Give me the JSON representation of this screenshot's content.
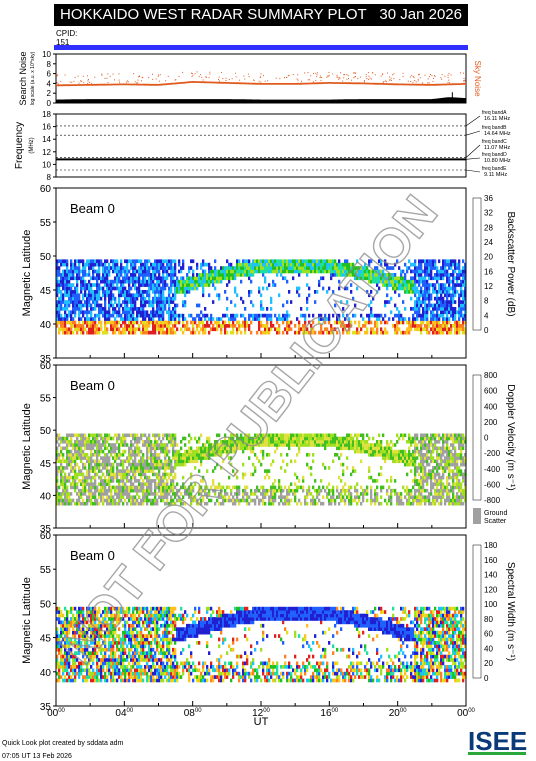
{
  "header": {
    "title": "HOKKAIDO WEST RADAR SUMMARY PLOT",
    "date": "30 Jan 2026",
    "cpid_label": "CPID:",
    "cpid_value": "151"
  },
  "watermark": "NOT FOR PUBLICATION",
  "footer": {
    "credit": "Quick Look plot created by sddata adm",
    "timestamp": "07:05 UT 13 Feb 2026",
    "logo": "ISEE"
  },
  "colors": {
    "cpid_bar": "#2f2fff",
    "sky_noise": "#e05a1e",
    "search_noise": "#000000",
    "ground_scatter": "#a0a0a0"
  },
  "chart_data": [
    {
      "type": "line",
      "panel": "noise",
      "ylabel_main": "Search Noise",
      "ylabel_sub": "log scale (a.u. x 10^sky)",
      "side_label": "Sky Noise",
      "ylim": [
        0,
        10
      ],
      "yticks": [
        "0",
        "2",
        "4",
        "6",
        "8",
        "10"
      ],
      "series": [
        {
          "name": "Sky Noise",
          "x": [
            0,
            2,
            4,
            6,
            8,
            10,
            12,
            14,
            16,
            18,
            20,
            22,
            23,
            24
          ],
          "values": [
            3.6,
            3.7,
            3.8,
            3.7,
            4.3,
            4.1,
            3.9,
            3.9,
            4.1,
            4.0,
            3.8,
            3.7,
            3.8,
            3.9
          ]
        },
        {
          "name": "Search Noise",
          "x": [
            0,
            2,
            4,
            6,
            8,
            10,
            12,
            14,
            16,
            18,
            20,
            22,
            23,
            24
          ],
          "values": [
            0.7,
            0.8,
            0.8,
            0.8,
            0.8,
            0.8,
            0.7,
            0.7,
            0.7,
            0.8,
            0.8,
            0.8,
            1.2,
            1.0
          ]
        }
      ]
    },
    {
      "type": "line",
      "panel": "frequency",
      "ylabel": "Frequency",
      "yunit": "(MHz)",
      "ylim": [
        8,
        18
      ],
      "yticks": [
        "8",
        "10",
        "12",
        "14",
        "16",
        "18"
      ],
      "bands": [
        {
          "label": "freq bandA",
          "value": "16.11 MHz",
          "freq": 16.11
        },
        {
          "label": "freq bandB",
          "value": "14.64 MHz",
          "freq": 14.64
        },
        {
          "label": "freq bandC",
          "value": "11.07 MHz",
          "freq": 11.07
        },
        {
          "label": "freq bandD",
          "value": "10.80 MHz",
          "freq": 10.8
        },
        {
          "label": "freq bandE",
          "value": "9.11 MHz",
          "freq": 9.11
        }
      ],
      "operating_freq": 10.8
    },
    {
      "type": "heatmap",
      "panel": "power",
      "beam": "Beam  0",
      "ylabel": "Magnetic Latitude",
      "colorbar_label": "Backscatter Power (dB)",
      "ylim": [
        35,
        60
      ],
      "yticks": [
        "35",
        "40",
        "45",
        "50",
        "55",
        "60"
      ],
      "colorbar_ticks": [
        "0",
        "4",
        "8",
        "12",
        "16",
        "20",
        "24",
        "28",
        "32",
        "36"
      ],
      "colors": [
        "#2020d0",
        "#2060ff",
        "#20c0ff",
        "#20e0a0",
        "#20c020",
        "#a0e020",
        "#e0e020",
        "#ffc020",
        "#ff8020",
        "#e02020"
      ]
    },
    {
      "type": "heatmap",
      "panel": "velocity",
      "beam": "Beam  0",
      "ylabel": "Magnetic Latitude",
      "colorbar_label": "Doppler Velocity (m s⁻¹)",
      "ylim": [
        35,
        60
      ],
      "yticks": [
        "35",
        "40",
        "45",
        "50",
        "55",
        "60"
      ],
      "colorbar_ticks": [
        "800",
        "600",
        "400",
        "200",
        "0",
        "-200",
        "-400",
        "-600",
        "-800"
      ],
      "colors": [
        "#2020c0",
        "#2060ff",
        "#20b0ff",
        "#20d0a0",
        "#40c020",
        "#a0e020",
        "#e0e040",
        "#ffc020",
        "#ff8020",
        "#e02020"
      ],
      "ground_scatter_label": "Ground Scatter"
    },
    {
      "type": "heatmap",
      "panel": "width",
      "beam": "Beam  0",
      "ylabel": "Magnetic Latitude",
      "colorbar_label": "Spectral Width (m s⁻¹)",
      "ylim": [
        35,
        60
      ],
      "yticks": [
        "35",
        "40",
        "45",
        "50",
        "55",
        "60"
      ],
      "colorbar_ticks": [
        "0",
        "20",
        "40",
        "60",
        "80",
        "100",
        "120",
        "140",
        "160",
        "180"
      ],
      "colors": [
        "#2020d0",
        "#2060ff",
        "#20c0ff",
        "#20e0a0",
        "#20c020",
        "#a0e020",
        "#e0e020",
        "#ffc020",
        "#ff8020",
        "#e02020"
      ]
    }
  ],
  "time_axis": {
    "label": "UT",
    "ticks": [
      {
        "hh": "00",
        "mm": "00"
      },
      {
        "hh": "04",
        "mm": "00"
      },
      {
        "hh": "08",
        "mm": "00"
      },
      {
        "hh": "12",
        "mm": "00"
      },
      {
        "hh": "16",
        "mm": "00"
      },
      {
        "hh": "20",
        "mm": "00"
      },
      {
        "hh": "00",
        "mm": "00"
      }
    ]
  }
}
